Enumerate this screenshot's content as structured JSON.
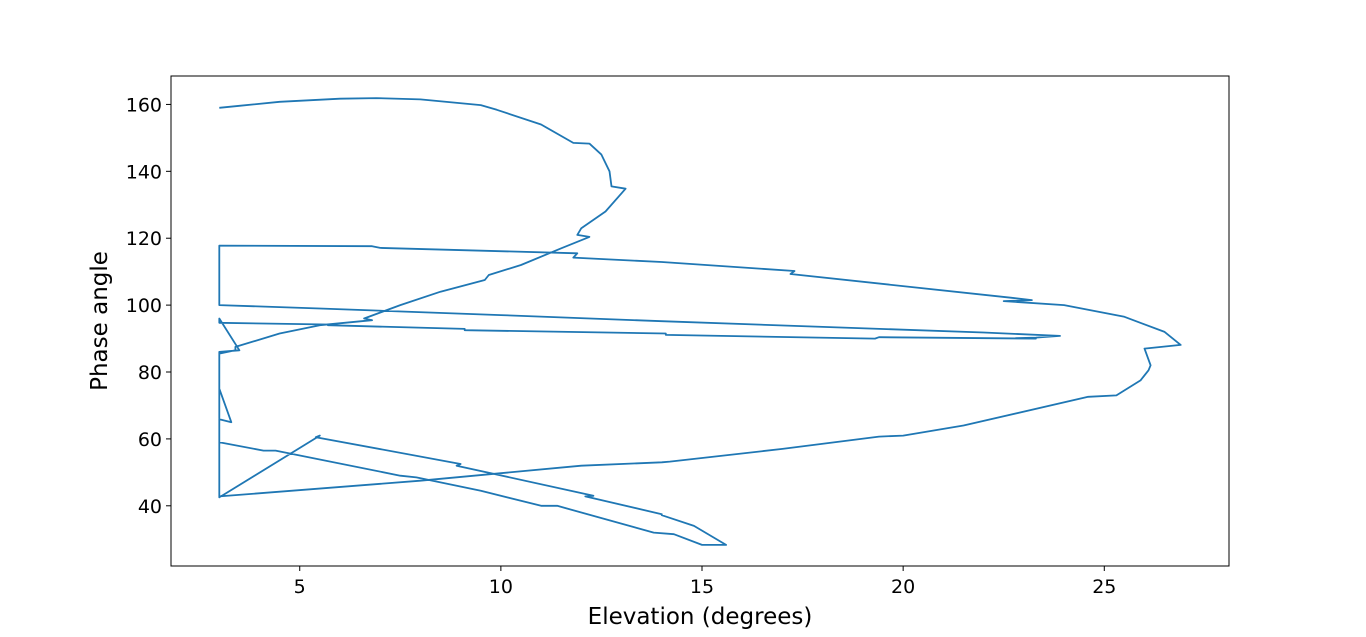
{
  "chart_data": {
    "type": "line",
    "title": "",
    "xlabel": "Elevation (degrees)",
    "ylabel": "Phase angle",
    "xlim": [
      1.8,
      28.1
    ],
    "ylim": [
      22,
      168.5
    ],
    "xticks": [
      5,
      10,
      15,
      20,
      25
    ],
    "yticks": [
      40,
      60,
      80,
      100,
      120,
      140,
      160
    ],
    "grid": false,
    "legend": "none",
    "series_color": "#1f77b4",
    "series": [
      {
        "x": [
          3.0,
          3.5,
          4.5,
          6.0,
          6.9,
          8.0,
          9.5,
          9.9,
          11.0,
          11.8,
          12.2,
          12.5,
          12.7,
          12.75,
          13.1,
          12.6,
          12.0,
          11.9,
          12.2,
          11.5,
          10.5,
          9.7,
          9.6,
          8.5,
          7.5,
          6.6,
          6.8,
          5.5,
          4.5,
          3.4,
          3.4,
          3.0,
          3.0,
          3.3,
          3.0,
          3.0,
          3.0,
          3.0,
          3.0,
          5.5,
          5.4,
          9.0,
          8.9,
          12.3,
          12.1,
          14.0,
          14.0,
          14.8,
          15.6,
          15.0,
          14.3,
          13.8,
          11.4,
          11.0,
          9.5,
          7.9,
          7.5,
          4.4,
          4.1,
          3.0,
          3.0,
          8.0,
          12.0,
          14.0,
          14.2,
          17.0,
          19.4,
          20.0,
          21.5,
          24.6,
          25.3,
          25.9,
          26.1,
          26.15,
          26.0,
          26.9,
          26.5,
          25.5,
          24.0,
          22.5,
          23.2,
          22.7,
          17.2,
          17.3,
          14.0,
          11.8,
          11.9,
          7.0,
          6.8,
          3.0,
          3.0,
          5.5,
          10.0,
          14.0,
          18.0,
          22.0,
          23.9,
          23.3,
          22.8,
          23.3,
          19.4,
          19.3,
          14.1,
          14.1,
          9.1,
          9.1,
          5.7,
          5.7,
          3.0,
          3.0,
          3.5,
          3.0,
          3.0,
          3.0,
          3.0,
          3.0
        ],
        "y": [
          159.0,
          159.6,
          160.8,
          161.7,
          161.9,
          161.5,
          159.8,
          158.4,
          154.0,
          148.5,
          148.3,
          145.0,
          140.0,
          135.5,
          134.8,
          128.0,
          123.0,
          121.0,
          120.4,
          117.0,
          112.0,
          109.0,
          107.5,
          104.0,
          100.0,
          96.0,
          95.5,
          94.0,
          91.5,
          87.5,
          86.5,
          85.5,
          75.0,
          65.0,
          65.9,
          63.0,
          58.0,
          50.0,
          42.5,
          61.0,
          60.5,
          52.5,
          52.0,
          43.0,
          42.8,
          37.5,
          37.2,
          34.0,
          28.3,
          28.3,
          31.5,
          32.0,
          40.0,
          40.0,
          44.5,
          48.5,
          49.0,
          56.5,
          56.5,
          59.0,
          42.8,
          47.5,
          52.0,
          53.0,
          53.2,
          57.0,
          60.7,
          61.0,
          64.0,
          72.6,
          73.0,
          77.5,
          80.5,
          82.0,
          87.0,
          88.1,
          92.0,
          96.5,
          100.0,
          101.2,
          101.5,
          102.2,
          109.3,
          110.2,
          112.9,
          114.2,
          115.5,
          117.1,
          117.6,
          117.8,
          100.0,
          99.0,
          97.0,
          95.2,
          93.5,
          91.8,
          90.8,
          90.3,
          90.1,
          90.0,
          90.4,
          90.0,
          91.1,
          91.5,
          92.5,
          92.9,
          94.0,
          94.2,
          94.7,
          96.0,
          86.5,
          86.0,
          84.0,
          80.0,
          75.0,
          66.0
        ]
      }
    ]
  }
}
